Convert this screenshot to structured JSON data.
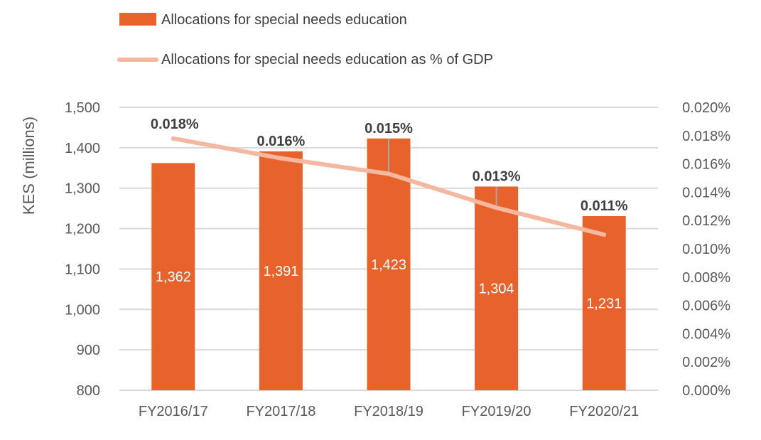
{
  "chart_data": {
    "type": "bar",
    "categories": [
      "FY2016/17",
      "FY2017/18",
      "FY2018/19",
      "FY2019/20",
      "FY2020/21"
    ],
    "series": [
      {
        "name": "Allocations for special needs education",
        "type": "bar",
        "axis": "left",
        "color": "#E8632B",
        "values": [
          1362,
          1391,
          1423,
          1304,
          1231
        ],
        "labels": [
          "1,362",
          "1,391",
          "1,423",
          "1,304",
          "1,231"
        ]
      },
      {
        "name": "Allocations for special needs education as % of GDP",
        "type": "line",
        "axis": "right",
        "color": "#F4B8A0",
        "values": [
          0.0178,
          0.0164,
          0.0153,
          0.0129,
          0.011
        ],
        "labels": [
          "0.018%",
          "0.016%",
          "0.015%",
          "0.013%",
          "0.011%"
        ]
      }
    ],
    "ylabel": "KES (millions)",
    "ylim": [
      800,
      1500
    ],
    "y_ticks": [
      "800",
      "900",
      "1,000",
      "1,100",
      "1,200",
      "1,300",
      "1,400",
      "1,500"
    ],
    "y2lim": [
      0,
      0.02
    ],
    "y2_ticks": [
      "0.000%",
      "0.002%",
      "0.004%",
      "0.006%",
      "0.008%",
      "0.010%",
      "0.012%",
      "0.014%",
      "0.016%",
      "0.018%",
      "0.020%"
    ],
    "grid": true,
    "grid_color": "#D9D9D9",
    "label_leader_color": "#A6A6A6",
    "legend_position": "top-left"
  }
}
